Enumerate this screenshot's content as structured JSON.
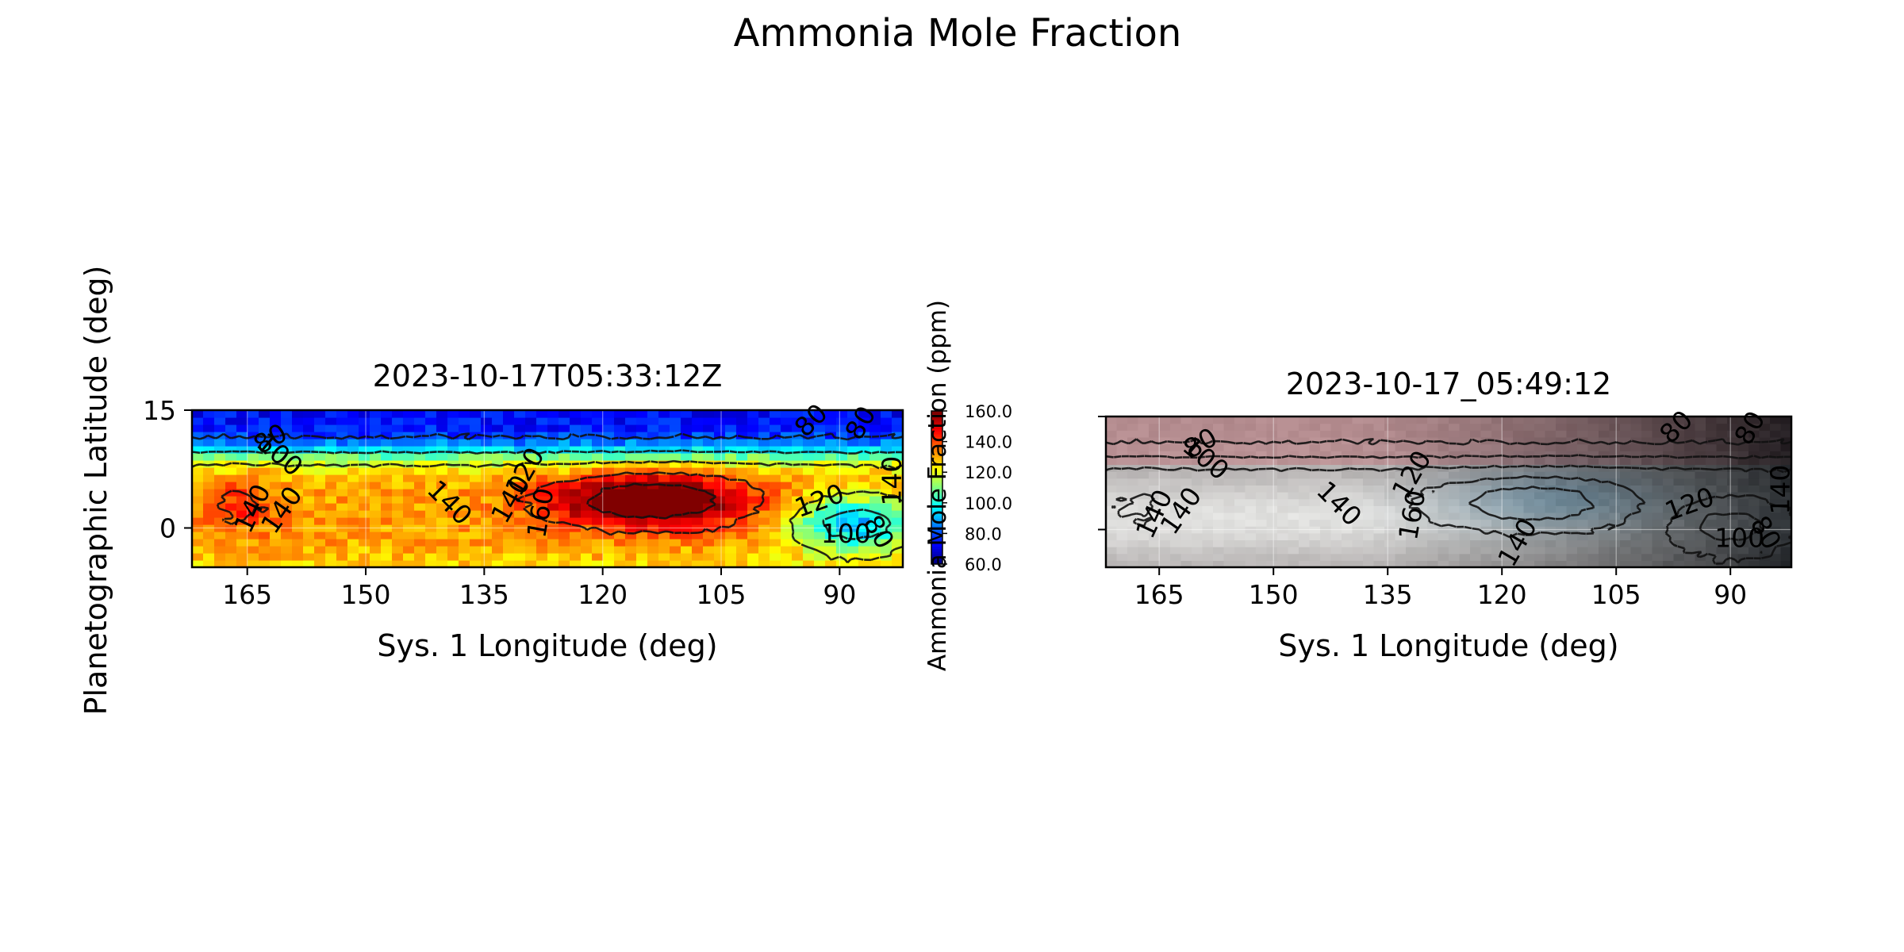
{
  "figure": {
    "title": "Ammonia Mole Fraction"
  },
  "chart_data": [
    {
      "type": "heatmap",
      "panel": "left",
      "title": "2023-10-17T05:33:12Z",
      "xlabel": "Sys. 1 Longitude (deg)",
      "ylabel": "Planetographic Latitude (deg)",
      "xlim": [
        172,
        82
      ],
      "ylim": [
        -5,
        15
      ],
      "x_ticks": [
        165,
        150,
        135,
        120,
        105,
        90
      ],
      "y_ticks": [
        15,
        0
      ],
      "grid": true,
      "colormap": "jet",
      "colorbar": {
        "label": "Ammonia Mole Fraction (ppm)",
        "ticks": [
          "160.0",
          "140.0",
          "120.0",
          "100.0",
          "80.0",
          "60.0"
        ],
        "range": [
          60,
          160
        ],
        "placement": "right of left panel"
      },
      "contour_levels": [
        80,
        100,
        120,
        140,
        160
      ],
      "contour_style": "dashed black",
      "contour_labels": [
        {
          "text": "80",
          "x": 162,
          "y": 11.2,
          "angle": -30
        },
        {
          "text": "100",
          "x": 161,
          "y": 9.2,
          "angle": 40
        },
        {
          "text": "140",
          "x": 164.2,
          "y": 2.4,
          "angle": -65
        },
        {
          "text": "140",
          "x": 160.5,
          "y": 2.2,
          "angle": -55
        },
        {
          "text": "140",
          "x": 139.5,
          "y": 3.1,
          "angle": 45
        },
        {
          "text": "120",
          "x": 129.7,
          "y": 7.1,
          "angle": -60
        },
        {
          "text": "140",
          "x": 131.5,
          "y": 3.6,
          "angle": -60
        },
        {
          "text": "160",
          "x": 127.7,
          "y": 1.9,
          "angle": -80
        },
        {
          "text": "120",
          "x": 92.5,
          "y": 3.3,
          "angle": -20
        },
        {
          "text": "100",
          "x": 89.2,
          "y": -0.9,
          "angle": 0
        },
        {
          "text": "80",
          "x": 85.2,
          "y": -0.6,
          "angle": 60
        },
        {
          "text": "80",
          "x": 93.5,
          "y": 14.2,
          "angle": -45
        },
        {
          "text": "80",
          "x": 87.2,
          "y": 13.3,
          "angle": -60
        },
        {
          "text": "140",
          "x": 82.5,
          "y": 6.0,
          "angle": -90
        }
      ],
      "field_description": {
        "background_ppm": 132,
        "north_band_ppm": 72,
        "core_max_ppm": 168,
        "core_center_lon": 114,
        "core_center_lat": 3.5,
        "southeast_low_ppm": 98
      }
    },
    {
      "type": "heatmap",
      "panel": "right",
      "title": "2023-10-17_05:49:12",
      "xlabel": "Sys. 1 Longitude (deg)",
      "xlim": [
        172,
        82
      ],
      "ylim": [
        -5,
        15
      ],
      "x_ticks": [
        165,
        150,
        135,
        120,
        105,
        90
      ],
      "grid": true,
      "colormap": "rgb image (grey-blue)",
      "contour_levels": [
        80,
        100,
        120,
        140,
        160
      ],
      "contour_style": "dashed black",
      "contour_labels": [
        {
          "text": "80",
          "x": 159.5,
          "y": 11.3,
          "angle": -30
        },
        {
          "text": "100",
          "x": 159.0,
          "y": 9.3,
          "angle": 40
        },
        {
          "text": "140",
          "x": 165.5,
          "y": 2.0,
          "angle": -65
        },
        {
          "text": "140",
          "x": 162.0,
          "y": 2.4,
          "angle": -55
        },
        {
          "text": "140",
          "x": 141.5,
          "y": 3.3,
          "angle": 45
        },
        {
          "text": "120",
          "x": 131.7,
          "y": 7.2,
          "angle": -60
        },
        {
          "text": "160",
          "x": 131.6,
          "y": 1.9,
          "angle": -80
        },
        {
          "text": "140",
          "x": 117.8,
          "y": -1.8,
          "angle": -60
        },
        {
          "text": "120",
          "x": 95.3,
          "y": 3.2,
          "angle": -20
        },
        {
          "text": "100",
          "x": 88.8,
          "y": -1.3,
          "angle": 0
        },
        {
          "text": "80",
          "x": 85.5,
          "y": -0.5,
          "angle": 60
        },
        {
          "text": "80",
          "x": 97.0,
          "y": 13.5,
          "angle": -45
        },
        {
          "text": "80",
          "x": 87.3,
          "y": 13.4,
          "angle": -60
        },
        {
          "text": "140",
          "x": 82.8,
          "y": 5.3,
          "angle": -90
        }
      ]
    }
  ]
}
